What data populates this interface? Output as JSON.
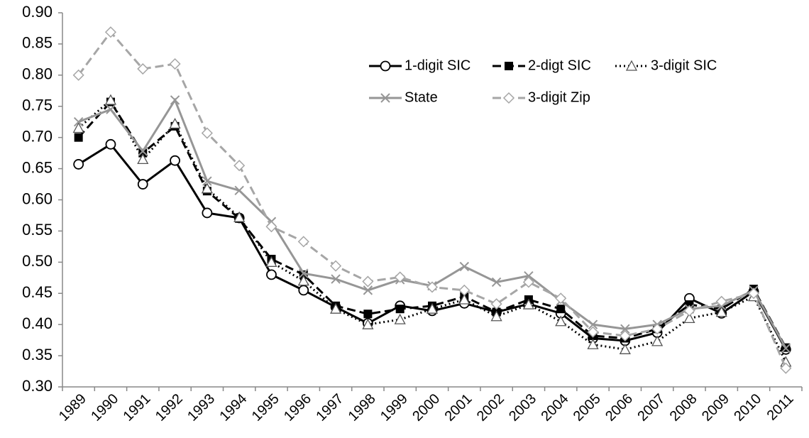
{
  "chart_data": {
    "type": "line",
    "categories": [
      "1989",
      "1990",
      "1991",
      "1992",
      "1993",
      "1994",
      "1995",
      "1996",
      "1997",
      "1998",
      "1999",
      "2000",
      "2001",
      "2002",
      "2003",
      "2004",
      "2005",
      "2006",
      "2007",
      "2008",
      "2009",
      "2010",
      "2011"
    ],
    "ylim": [
      0.3,
      0.9
    ],
    "yticks": [
      {
        "value": 0.3,
        "label": "0.30"
      },
      0.35,
      {
        "value": 0.4,
        "label": "0.40"
      },
      0.45,
      {
        "value": 0.5,
        "label": "0.50"
      },
      0.55,
      {
        "value": 0.6,
        "label": "0.60"
      },
      0.65,
      {
        "value": 0.7,
        "label": "0.70"
      },
      0.75,
      {
        "value": 0.8,
        "label": "0.80"
      },
      0.85,
      {
        "value": 0.9,
        "label": "0.90"
      }
    ],
    "grid": false,
    "series": [
      {
        "name": "1-digit SIC",
        "color": "#000000",
        "dash": "solid",
        "marker": "circle",
        "values": [
          0.657,
          0.689,
          0.625,
          0.663,
          0.579,
          0.571,
          0.48,
          0.455,
          0.428,
          0.402,
          0.43,
          0.422,
          0.434,
          0.42,
          0.433,
          0.418,
          0.378,
          0.374,
          0.387,
          0.442,
          0.418,
          0.453,
          0.36
        ]
      },
      {
        "name": "2-digt SIC",
        "color": "#000000",
        "dash": "dashed",
        "marker": "square",
        "values": [
          0.7,
          0.757,
          0.675,
          0.718,
          0.614,
          0.57,
          0.505,
          0.48,
          0.43,
          0.417,
          0.425,
          0.43,
          0.445,
          0.42,
          0.44,
          0.425,
          0.382,
          0.378,
          0.393,
          0.432,
          0.425,
          0.457,
          0.363
        ]
      },
      {
        "name": "3-digit SIC",
        "color": "#000000",
        "dash": "dotted",
        "marker": "triangle",
        "values": [
          0.715,
          0.76,
          0.665,
          0.722,
          0.618,
          0.572,
          0.5,
          0.47,
          0.425,
          0.4,
          0.408,
          0.425,
          0.44,
          0.413,
          0.432,
          0.405,
          0.368,
          0.36,
          0.373,
          0.41,
          0.42,
          0.445,
          0.34
        ]
      },
      {
        "name": "State",
        "color": "#969696",
        "dash": "solid",
        "marker": "x",
        "values": [
          0.725,
          0.745,
          0.678,
          0.76,
          0.63,
          0.615,
          0.565,
          0.482,
          0.473,
          0.455,
          0.472,
          0.462,
          0.493,
          0.468,
          0.478,
          0.438,
          0.4,
          0.393,
          0.4,
          0.425,
          0.43,
          0.455,
          0.362
        ]
      },
      {
        "name": "3-digit Zip",
        "color": "#a6a6a6",
        "dash": "dashed",
        "marker": "diamond",
        "values": [
          0.8,
          0.869,
          0.81,
          0.818,
          0.707,
          0.655,
          0.557,
          0.533,
          0.494,
          0.469,
          0.476,
          0.46,
          0.455,
          0.433,
          0.468,
          0.442,
          0.388,
          0.382,
          0.393,
          0.422,
          0.437,
          0.45,
          0.33
        ]
      }
    ]
  }
}
